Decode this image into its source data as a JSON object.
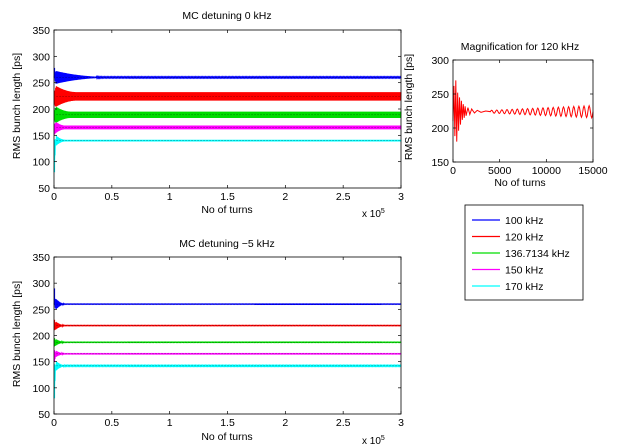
{
  "colors": {
    "100 kHz": "#0000ff",
    "120 kHz": "#ff0000",
    "136.7134 kHz": "#00dd00",
    "150 kHz": "#ff00ff",
    "170 kHz": "#00ffff",
    "axes": "#000000"
  },
  "legend": {
    "placement": "right-middle",
    "entries": [
      "100 kHz",
      "120 kHz",
      "136.7134 kHz",
      "150 kHz",
      "170 kHz"
    ]
  },
  "chart_data": [
    {
      "type": "line",
      "title": "MC detuning 0 kHz",
      "xlabel": "No of turns",
      "ylabel": "RMS bunch length [ps]",
      "x_exponent_label": "x 10",
      "x_exponent_power": "5",
      "xlim": [
        0,
        3
      ],
      "ylim": [
        50,
        350
      ],
      "xticks": [
        "0",
        "0.5",
        "1",
        "1.5",
        "2",
        "2.5",
        "3"
      ],
      "yticks": [
        "50",
        "100",
        "150",
        "200",
        "250",
        "300",
        "350"
      ],
      "grid": false,
      "series": [
        {
          "name": "100 kHz",
          "steady": 260,
          "band": 2,
          "initial": [
            278,
            262
          ],
          "settle": 0.45,
          "transient_amp": 12
        },
        {
          "name": "120 kHz",
          "steady": 224,
          "band": 16,
          "initial": [
            235,
            210
          ],
          "settle": 0.2,
          "transient_amp": 14
        },
        {
          "name": "136.7134 kHz",
          "steady": 189,
          "band": 12,
          "initial": [
            198,
            180
          ],
          "settle": 0.15,
          "transient_amp": 12
        },
        {
          "name": "150 kHz",
          "steady": 165,
          "band": 7,
          "initial": [
            172,
            152
          ],
          "settle": 0.1,
          "transient_amp": 10
        },
        {
          "name": "170 kHz",
          "steady": 140,
          "band": 3,
          "initial": [
            142,
            80
          ],
          "settle": 0.1,
          "transient_amp": 12
        }
      ]
    },
    {
      "type": "line",
      "title": "MC detuning −5 kHz",
      "xlabel": "No of turns",
      "ylabel": "RMS bunch length [ps]",
      "x_exponent_label": "x 10",
      "x_exponent_power": "5",
      "xlim": [
        0,
        3
      ],
      "ylim": [
        50,
        350
      ],
      "xticks": [
        "0",
        "0.5",
        "1",
        "1.5",
        "2",
        "2.5",
        "3"
      ],
      "yticks": [
        "50",
        "100",
        "150",
        "200",
        "250",
        "300",
        "350"
      ],
      "grid": false,
      "series": [
        {
          "name": "100 kHz",
          "steady": 260,
          "band": 1,
          "initial": [
            290,
            262
          ],
          "settle": 0.1,
          "transient_amp": 14
        },
        {
          "name": "120 kHz",
          "steady": 219,
          "band": 1,
          "initial": [
            230,
            212
          ],
          "settle": 0.1,
          "transient_amp": 10
        },
        {
          "name": "136.7134 kHz",
          "steady": 187,
          "band": 1,
          "initial": [
            195,
            180
          ],
          "settle": 0.1,
          "transient_amp": 8
        },
        {
          "name": "150 kHz",
          "steady": 165,
          "band": 1,
          "initial": [
            172,
            150
          ],
          "settle": 0.1,
          "transient_amp": 8
        },
        {
          "name": "170 kHz",
          "steady": 142,
          "band": 2,
          "initial": [
            145,
            80
          ],
          "settle": 0.1,
          "transient_amp": 12
        }
      ]
    },
    {
      "type": "line",
      "title": "Magnification for 120 kHz",
      "xlabel": "No of turns",
      "ylabel": "RMS bunch length [ps]",
      "xlim": [
        0,
        15000
      ],
      "ylim": [
        150,
        300
      ],
      "xticks": [
        "0",
        "5000",
        "10000",
        "15000"
      ],
      "yticks": [
        "150",
        "200",
        "250",
        "300"
      ],
      "grid": false,
      "series": [
        {
          "name": "120 kHz",
          "x": [
            0,
            100,
            200,
            300,
            400,
            500,
            600,
            700,
            800,
            900,
            1000,
            1100,
            1200,
            1300,
            1400,
            1600,
            1800,
            2000,
            2300,
            2600,
            3000,
            3500,
            4000
          ],
          "y": [
            210,
            262,
            188,
            270,
            180,
            252,
            196,
            245,
            205,
            240,
            212,
            235,
            215,
            232,
            218,
            230,
            220,
            228,
            222,
            226,
            223,
            225,
            224
          ],
          "tail_center": 224,
          "tail_amp_start": 2,
          "tail_amp_end": 9,
          "tail_period": 550
        }
      ]
    }
  ]
}
